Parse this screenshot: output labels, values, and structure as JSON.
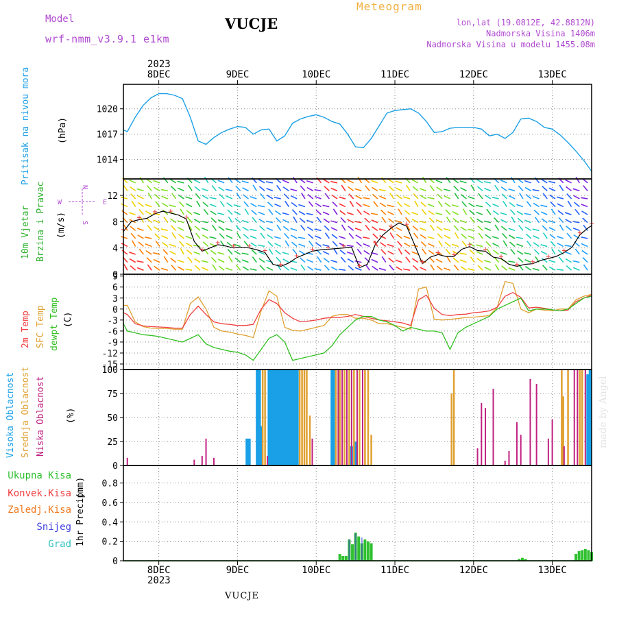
{
  "header": {
    "model_label": "Model",
    "model_value": "wrf-nmm_v3.9.1 e1km",
    "station_title": "VUCJE",
    "meteogram_label": "Meteogram",
    "coords": "lon,lat (19.0812E, 42.8812N)",
    "elevation": "Nadmorska Visina 1406m",
    "model_elevation": "Nadmorska Visina u modelu 1455.08m"
  },
  "footer": {
    "station": "VUCJE",
    "watermark": "made by Angel"
  },
  "colors": {
    "pressure": "#1aa0e6",
    "wind_speed_text": "#2ab02a",
    "dir_text": "#b04ad0",
    "t2m": "#f04040",
    "sfc": "#e0a030",
    "dewpt": "#30c020",
    "high_cloud": "#1aa0e6",
    "mid_cloud": "#e0a030",
    "low_cloud": "#c02080",
    "total_precip": "#30c030",
    "conv_precip": "#f04040",
    "frozen": "#f07a20",
    "snow": "#4040e0",
    "graupel": "#30c0c0",
    "model": "#b04ad0",
    "meteogram": "#f0b040"
  },
  "time_axis": {
    "year_top": "2023",
    "year_bottom": "2023",
    "days": [
      "8DEC",
      "9DEC",
      "10DEC",
      "11DEC",
      "12DEC",
      "13DEC"
    ]
  },
  "chart_data": [
    {
      "type": "line",
      "id": "pressure",
      "title": "",
      "ylabel": "Pritisak na nivou mora",
      "unit": "(hPa)",
      "yticks": [
        "1020",
        "1017",
        "1014"
      ],
      "ylim": [
        1011.7,
        1022.9
      ],
      "x_days": [
        7.55,
        7.6,
        7.7,
        7.8,
        7.9,
        8.0,
        8.1,
        8.2,
        8.3,
        8.4,
        8.5,
        8.6,
        8.7,
        8.8,
        8.9,
        9.0,
        9.1,
        9.2,
        9.3,
        9.4,
        9.5,
        9.6,
        9.7,
        9.8,
        9.9,
        10.0,
        10.1,
        10.2,
        10.3,
        10.4,
        10.5,
        10.6,
        10.7,
        10.8,
        10.9,
        11.0,
        11.1,
        11.2,
        11.3,
        11.4,
        11.5,
        11.6,
        11.7,
        11.8,
        11.9,
        12.0,
        12.1,
        12.2,
        12.3,
        12.4,
        12.5,
        12.6,
        12.7,
        12.8,
        12.9,
        13.0,
        13.1,
        13.2,
        13.3,
        13.4,
        13.5
      ],
      "series": [
        {
          "values": [
            1017.5,
            1017.3,
            1019.0,
            1020.4,
            1021.3,
            1021.8,
            1021.8,
            1021.6,
            1021.2,
            1019.0,
            1016.2,
            1015.8,
            1016.6,
            1017.2,
            1017.6,
            1017.9,
            1017.8,
            1017.0,
            1017.5,
            1017.6,
            1016.2,
            1016.8,
            1018.3,
            1018.8,
            1019.1,
            1019.3,
            1019.0,
            1018.5,
            1018.2,
            1017.0,
            1015.5,
            1015.4,
            1016.5,
            1018.0,
            1019.5,
            1019.8,
            1019.9,
            1020.0,
            1019.5,
            1018.5,
            1017.2,
            1017.3,
            1017.7,
            1017.8,
            1017.8,
            1017.8,
            1017.6,
            1016.8,
            1017.0,
            1016.5,
            1017.2,
            1018.8,
            1018.9,
            1018.5,
            1017.8,
            1017.6,
            1016.9,
            1016.0,
            1015.0,
            1013.9,
            1012.6
          ]
        }
      ]
    },
    {
      "type": "line",
      "id": "wind",
      "ylabel_lines": [
        "10m Vjetar",
        "Brzina i Pravac"
      ],
      "unit": "(m/s)",
      "compass": {
        "n": "N",
        "s": "S",
        "w": "W",
        "e": "E"
      },
      "yticks": [
        "12",
        "8",
        "4",
        "0"
      ],
      "ylim": [
        0,
        14.5
      ],
      "x_days": [
        7.55,
        7.65,
        7.75,
        7.85,
        7.95,
        8.05,
        8.15,
        8.25,
        8.35,
        8.45,
        8.55,
        8.65,
        8.75,
        8.85,
        8.95,
        9.05,
        9.15,
        9.25,
        9.35,
        9.45,
        9.55,
        9.65,
        9.75,
        9.85,
        9.95,
        10.05,
        10.15,
        10.25,
        10.35,
        10.45,
        10.55,
        10.65,
        10.75,
        10.85,
        10.95,
        11.05,
        11.15,
        11.25,
        11.35,
        11.45,
        11.55,
        11.65,
        11.75,
        11.85,
        11.95,
        12.05,
        12.15,
        12.25,
        12.35,
        12.45,
        12.55,
        12.65,
        12.75,
        12.85,
        12.95,
        13.05,
        13.15,
        13.25,
        13.35,
        13.45,
        13.5
      ],
      "series": [
        {
          "name": "speed",
          "values": [
            6.5,
            8.0,
            8.3,
            8.5,
            9.2,
            9.6,
            9.3,
            9.0,
            8.4,
            5.0,
            3.5,
            4.0,
            4.5,
            4.3,
            4.0,
            4.1,
            4.0,
            3.7,
            3.3,
            1.5,
            1.2,
            1.7,
            2.5,
            3.0,
            3.5,
            3.7,
            3.8,
            3.9,
            4.0,
            4.1,
            1.0,
            1.5,
            4.5,
            6.0,
            7.0,
            7.8,
            7.3,
            4.5,
            1.6,
            2.6,
            3.0,
            2.7,
            2.7,
            3.8,
            4.2,
            3.6,
            3.5,
            2.6,
            2.4,
            1.5,
            1.2,
            1.5,
            1.6,
            2.1,
            2.4,
            2.7,
            3.3,
            4.1,
            6.0,
            7.0,
            7.4
          ]
        }
      ]
    },
    {
      "type": "line",
      "id": "temperature",
      "ylabel_lines": [
        "2m Temp",
        "SFC Temp",
        "dewpt Temp"
      ],
      "unit": "(C)",
      "yticks": [
        "9",
        "6",
        "3",
        "0",
        "-3",
        "-6",
        "-9",
        "-12",
        "-15"
      ],
      "ylim": [
        -16.5,
        9.5
      ],
      "x_days": [
        7.55,
        7.6,
        7.7,
        7.8,
        7.9,
        8.0,
        8.1,
        8.2,
        8.3,
        8.4,
        8.5,
        8.6,
        8.7,
        8.8,
        8.9,
        9.0,
        9.1,
        9.2,
        9.3,
        9.4,
        9.5,
        9.6,
        9.7,
        9.8,
        9.9,
        10.0,
        10.1,
        10.2,
        10.3,
        10.4,
        10.5,
        10.6,
        10.7,
        10.8,
        10.9,
        11.0,
        11.1,
        11.2,
        11.3,
        11.4,
        11.5,
        11.6,
        11.7,
        11.8,
        11.9,
        12.0,
        12.1,
        12.2,
        12.3,
        12.4,
        12.5,
        12.6,
        12.7,
        12.8,
        12.9,
        13.0,
        13.1,
        13.2,
        13.3,
        13.4,
        13.5
      ],
      "series": [
        {
          "name": "2m Temp",
          "values": [
            -1.0,
            -1.5,
            -4.0,
            -4.6,
            -4.8,
            -4.9,
            -5.0,
            -5.2,
            -5.2,
            -1.5,
            0.8,
            -1.5,
            -3.5,
            -4.0,
            -4.2,
            -4.5,
            -4.5,
            -4.2,
            0.0,
            2.6,
            1.5,
            -1.0,
            -2.5,
            -3.5,
            -3.3,
            -3.0,
            -2.5,
            -2.3,
            -2.3,
            -2.0,
            -1.5,
            -2.0,
            -2.5,
            -3.0,
            -3.2,
            -3.5,
            -3.8,
            -4.5,
            2.5,
            3.8,
            0.2,
            -1.5,
            -1.8,
            -1.5,
            -1.4,
            -1.0,
            -0.8,
            -0.5,
            0.5,
            3.5,
            4.5,
            3.2,
            0.3,
            0.5,
            0.2,
            -0.2,
            -0.5,
            -0.3,
            2.0,
            3.0,
            3.8
          ]
        },
        {
          "name": "SFC Temp",
          "values": [
            1.0,
            1.0,
            -3.5,
            -4.8,
            -5.2,
            -5.3,
            -5.3,
            -5.5,
            -5.5,
            1.5,
            3.3,
            0.0,
            -5.0,
            -6.0,
            -6.3,
            -6.8,
            -7.2,
            -7.8,
            -0.5,
            5.0,
            3.5,
            -5.0,
            -5.8,
            -6.0,
            -5.5,
            -5.0,
            -4.5,
            -2.0,
            -1.5,
            -1.5,
            -2.5,
            -2.5,
            -3.0,
            -4.0,
            -4.0,
            -4.5,
            -5.0,
            -5.5,
            5.5,
            6.0,
            -2.8,
            -3.0,
            -2.8,
            -2.6,
            -2.3,
            -2.2,
            -2.0,
            -1.8,
            0.5,
            7.5,
            7.0,
            0.0,
            -1.0,
            0.0,
            -0.3,
            -0.5,
            0.0,
            0.0,
            2.5,
            3.5,
            4.0
          ]
        },
        {
          "name": "dewpt Temp",
          "values": [
            -4.0,
            -6.0,
            -6.5,
            -7.0,
            -7.2,
            -7.5,
            -8.0,
            -8.5,
            -9.0,
            -8.0,
            -7.0,
            -9.5,
            -10.5,
            -11.0,
            -11.5,
            -11.8,
            -12.5,
            -14.0,
            -11.0,
            -8.0,
            -7.0,
            -9.0,
            -14.0,
            -13.5,
            -13.0,
            -12.5,
            -12.0,
            -10.0,
            -7.0,
            -5.0,
            -3.0,
            -2.0,
            -2.0,
            -3.0,
            -3.5,
            -4.5,
            -6.0,
            -5.0,
            -5.5,
            -6.0,
            -6.0,
            -6.5,
            -11.0,
            -6.5,
            -5.0,
            -4.0,
            -3.0,
            -2.0,
            0.0,
            1.0,
            2.0,
            3.0,
            -0.5,
            0.0,
            0.0,
            -0.2,
            -0.5,
            0.0,
            1.5,
            3.0,
            3.5
          ]
        }
      ]
    },
    {
      "type": "bar",
      "id": "clouds",
      "ylabel_lines": [
        "Visoka Oblacnost",
        "Srednja Oblacnost",
        "Niska Oblacnost"
      ],
      "unit": "(%)",
      "yticks": [
        "100",
        "75",
        "50",
        "25",
        "0"
      ],
      "ylim": [
        0,
        100
      ],
      "series": [
        {
          "name": "Visoka Oblacnost",
          "x_days": [
            9.12,
            9.15,
            9.25,
            9.28,
            9.3,
            9.4,
            9.43,
            9.46,
            9.49,
            9.52,
            9.55,
            9.58,
            9.61,
            9.64,
            9.67,
            9.7,
            9.73,
            9.76,
            10.2,
            10.22,
            10.45,
            10.5,
            13.45,
            13.48
          ],
          "values": [
            28,
            28,
            100,
            100,
            41,
            100,
            100,
            100,
            100,
            100,
            100,
            100,
            100,
            100,
            100,
            100,
            100,
            100,
            100,
            100,
            20,
            25,
            95,
            100
          ]
        },
        {
          "name": "Srednja Oblacnost",
          "x_days": [
            9.32,
            9.35,
            9.79,
            9.82,
            9.85,
            9.88,
            9.92,
            10.25,
            10.3,
            10.36,
            10.42,
            10.48,
            10.55,
            10.62,
            10.66,
            10.7,
            11.72,
            11.75,
            13.12,
            13.14,
            13.2,
            13.35,
            13.38
          ],
          "values": [
            100,
            100,
            100,
            100,
            100,
            100,
            52,
            100,
            100,
            100,
            100,
            100,
            100,
            100,
            100,
            32,
            75,
            100,
            100,
            72,
            100,
            100,
            100
          ]
        },
        {
          "name": "Niska Oblacnost",
          "x_days": [
            7.6,
            8.45,
            8.55,
            8.6,
            8.7,
            9.38,
            9.95,
            10.28,
            10.33,
            10.39,
            10.45,
            10.52,
            10.59,
            12.05,
            12.1,
            12.15,
            12.25,
            12.4,
            12.45,
            12.55,
            12.6,
            12.72,
            12.8,
            12.95,
            13.0,
            13.15,
            13.28,
            13.32,
            13.42
          ],
          "values": [
            8,
            6,
            10,
            28,
            8,
            10,
            28,
            100,
            100,
            100,
            100,
            100,
            100,
            18,
            65,
            60,
            80,
            5,
            15,
            45,
            32,
            90,
            85,
            28,
            48,
            20,
            100,
            100,
            100
          ]
        }
      ]
    },
    {
      "type": "bar",
      "id": "precip",
      "ylabel": "1hr Precip",
      "unit": "(mm)",
      "legend": [
        "Ukupna Kisa",
        "Konvek.Kisa",
        "Zaledj.Kisa",
        "Snijeg",
        "Grad"
      ],
      "yticks": [
        "0.8",
        "0.6",
        "0.4",
        "0.2",
        "0"
      ],
      "ylim": [
        0,
        0.98
      ],
      "series": [
        {
          "name": "Ukupna Kisa",
          "x_days": [
            10.3,
            10.34,
            10.38,
            10.42,
            10.46,
            10.5,
            10.54,
            10.58,
            10.62,
            10.66,
            10.7,
            12.58,
            12.62,
            12.66,
            13.3,
            13.34,
            13.38,
            13.42,
            13.46,
            13.5
          ],
          "values": [
            0.07,
            0.05,
            0.05,
            0.22,
            0.17,
            0.29,
            0.25,
            0.18,
            0.22,
            0.2,
            0.18,
            0.02,
            0.03,
            0.02,
            0.07,
            0.1,
            0.11,
            0.12,
            0.11,
            0.09
          ]
        },
        {
          "name": "Snijeg",
          "x_days": [
            10.42,
            10.5,
            10.58
          ],
          "values": [
            0.22,
            0.28,
            0.24
          ]
        }
      ]
    }
  ]
}
